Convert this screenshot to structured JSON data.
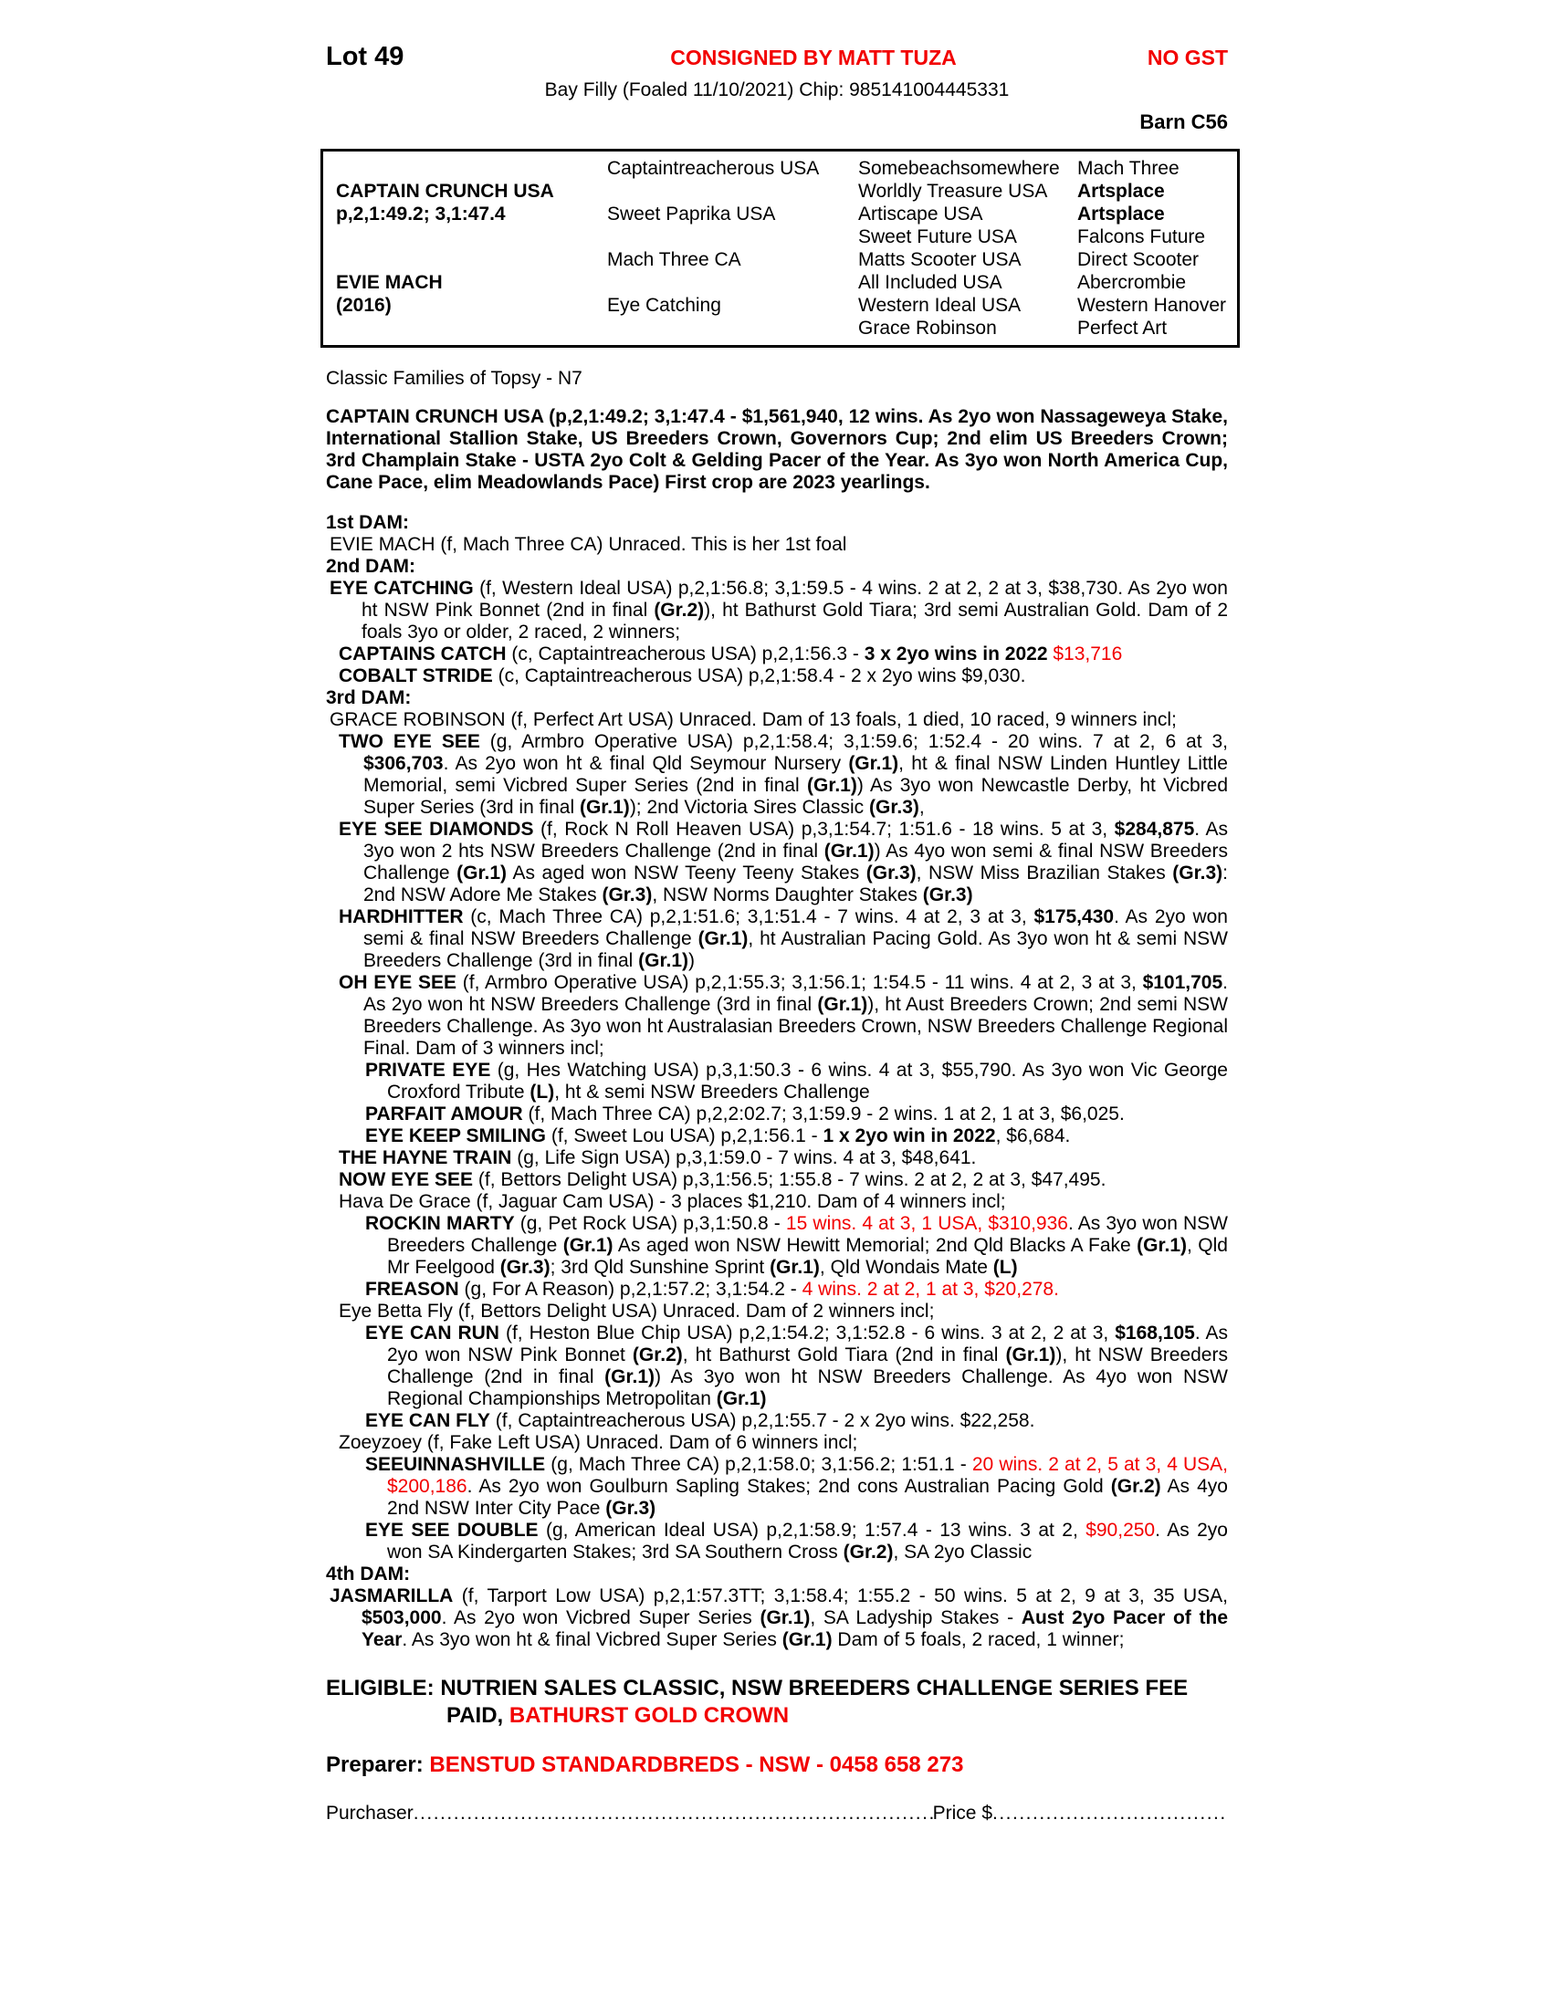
{
  "colors": {
    "accent_red": "#f20000",
    "text": "#000000",
    "page_background": "#ffffff"
  },
  "header": {
    "lot": "Lot 49",
    "consigned": "CONSIGNED BY MATT TUZA",
    "gst": "NO GST",
    "description": "Bay Filly (Foaled 11/10/2021) Chip: 985141004445331",
    "barn": "Barn C56"
  },
  "pedigree": {
    "col1": [
      "",
      {
        "t": "CAPTAIN CRUNCH USA",
        "b": true
      },
      {
        "t": "p,2,1:49.2; 3,1:47.4",
        "b": true
      },
      "",
      "",
      {
        "t": "EVIE MACH",
        "b": true
      },
      {
        "t": "(2016)",
        "b": true
      },
      ""
    ],
    "col2": [
      "Captaintreacherous USA",
      "",
      "Sweet Paprika USA",
      "",
      "Mach Three CA",
      "",
      "Eye Catching",
      ""
    ],
    "col3": [
      "Somebeachsomewhere",
      "Worldly Treasure USA",
      "Artiscape USA",
      "Sweet Future USA",
      "Matts Scooter USA",
      "All Included USA",
      "Western Ideal USA",
      "Grace Robinson"
    ],
    "col4": [
      "Mach Three",
      {
        "t": "Artsplace",
        "b": true
      },
      {
        "t": "Artsplace",
        "b": true
      },
      "Falcons Future",
      "Direct Scooter",
      "Abercrombie",
      "Western Hanover",
      "Perfect Art"
    ]
  },
  "body": [
    {
      "c": "note",
      "s": [
        "Classic Families of Topsy - N7"
      ]
    },
    {
      "c": "sire-para",
      "s": [
        "CAPTAIN CRUNCH USA (p,2,1:49.2; 3,1:47.4 - $1,561,940, 12 wins. As 2yo won Nassageweya Stake, International Stallion Stake, US Breeders Crown, Governors Cup; 2nd elim US Breeders Crown; 3rd Champlain Stake - USTA 2yo Colt & Gelding Pacer of the Year. As 3yo won North America Cup, Cane Pace, elim Meadowlands Pace) First crop are 2023 yearlings."
      ]
    },
    {
      "c": "dam-h",
      "s": [
        "1st DAM:"
      ]
    },
    {
      "c": "l1",
      "s": [
        "EVIE MACH (f, Mach Three CA) Unraced. This is her 1st foal"
      ]
    },
    {
      "c": "dam-h",
      "s": [
        "2nd DAM:"
      ]
    },
    {
      "c": "l1",
      "s": [
        {
          "t": "EYE CATCHING",
          "b": true
        },
        " (f, Western Ideal USA) p,2,1:56.8; 3,1:59.5 - 4 wins. 2 at 2, 2 at 3, $38,730. As 2yo won ht NSW Pink Bonnet (2nd in final ",
        {
          "t": "(Gr.2)",
          "b": true
        },
        "), ht Bathurst Gold Tiara; 3rd semi Australian Gold. Dam of 2 foals 3yo or older, 2 raced, 2 winners;"
      ]
    },
    {
      "c": "l2",
      "s": [
        {
          "t": "CAPTAINS CATCH",
          "b": true
        },
        " (c, Captaintreacherous USA) p,2,1:56.3 - ",
        {
          "t": "3 x 2yo wins in 2022",
          "b": true
        },
        " ",
        {
          "t": "$13,716",
          "r": true
        }
      ]
    },
    {
      "c": "l2",
      "s": [
        {
          "t": "COBALT STRIDE",
          "b": true
        },
        " (c, Captaintreacherous USA) p,2,1:58.4 - 2 x 2yo wins $9,030."
      ]
    },
    {
      "c": "dam-h",
      "s": [
        "3rd DAM:"
      ]
    },
    {
      "c": "l1",
      "s": [
        "GRACE ROBINSON (f, Perfect Art USA) Unraced. Dam of 13 foals, 1 died, 10 raced, 9 winners incl;"
      ]
    },
    {
      "c": "l2",
      "s": [
        {
          "t": "TWO EYE SEE",
          "b": true
        },
        " (g, Armbro Operative USA) p,2,1:58.4; 3,1:59.6; 1:52.4 - 20 wins. 7 at 2, 6 at 3, ",
        {
          "t": "$306,703",
          "b": true
        },
        ". As 2yo won ht & final Qld Seymour Nursery ",
        {
          "t": "(Gr.1)",
          "b": true
        },
        ", ht & final NSW Linden Huntley Little Memorial, semi Vicbred Super Series (2nd in final ",
        {
          "t": "(Gr.1)",
          "b": true
        },
        ") As 3yo won Newcastle Derby, ht Vicbred Super Series (3rd in final ",
        {
          "t": "(Gr.1)",
          "b": true
        },
        "); 2nd Victoria Sires Classic ",
        {
          "t": "(Gr.3)",
          "b": true
        },
        ","
      ]
    },
    {
      "c": "l2",
      "s": [
        {
          "t": "EYE SEE DIAMONDS",
          "b": true
        },
        " (f, Rock N Roll Heaven USA) p,3,1:54.7; 1:51.6 - 18 wins. 5 at 3, ",
        {
          "t": "$284,875",
          "b": true
        },
        ". As 3yo won 2 hts NSW Breeders Challenge (2nd in final ",
        {
          "t": "(Gr.1)",
          "b": true
        },
        ") As 4yo won semi & final NSW Breeders Challenge ",
        {
          "t": "(Gr.1)",
          "b": true
        },
        " As aged won NSW Teeny Teeny Stakes ",
        {
          "t": "(Gr.3)",
          "b": true
        },
        ", NSW Miss Brazilian Stakes ",
        {
          "t": "(Gr.3)",
          "b": true
        },
        ": 2nd NSW Adore Me Stakes ",
        {
          "t": "(Gr.3)",
          "b": true
        },
        ", NSW Norms Daughter Stakes ",
        {
          "t": "(Gr.3)",
          "b": true
        }
      ]
    },
    {
      "c": "l2",
      "s": [
        {
          "t": "HARDHITTER",
          "b": true
        },
        " (c, Mach Three CA) p,2,1:51.6; 3,1:51.4 - 7 wins. 4 at 2, 3 at 3, ",
        {
          "t": "$175,430",
          "b": true
        },
        ". As 2yo won semi & final NSW Breeders Challenge ",
        {
          "t": "(Gr.1)",
          "b": true
        },
        ", ht Australian Pacing Gold. As 3yo won ht & semi NSW Breeders Challenge (3rd in final ",
        {
          "t": "(Gr.1)",
          "b": true
        },
        ")"
      ]
    },
    {
      "c": "l2",
      "s": [
        {
          "t": "OH EYE SEE",
          "b": true
        },
        " (f, Armbro Operative USA) p,2,1:55.3; 3,1:56.1; 1:54.5 - 11 wins. 4 at 2, 3 at 3, ",
        {
          "t": "$101,705",
          "b": true
        },
        ". As 2yo won ht NSW Breeders Challenge (3rd in final ",
        {
          "t": "(Gr.1)",
          "b": true
        },
        "), ht Aust Breeders Crown; 2nd semi NSW Breeders Challenge. As 3yo won ht Australasian Breeders Crown, NSW Breeders Challenge Regional Final. Dam of 3 winners incl;"
      ]
    },
    {
      "c": "l3",
      "s": [
        {
          "t": "PRIVATE EYE",
          "b": true
        },
        " (g, Hes Watching USA) p,3,1:50.3 - 6 wins. 4 at 3, $55,790. As 3yo won Vic George Croxford Tribute ",
        {
          "t": "(L)",
          "b": true
        },
        ", ht & semi NSW Breeders Challenge"
      ]
    },
    {
      "c": "l3",
      "s": [
        {
          "t": "PARFAIT AMOUR",
          "b": true
        },
        " (f, Mach Three CA) p,2,2:02.7; 3,1:59.9 - 2 wins. 1 at 2, 1 at 3, $6,025."
      ]
    },
    {
      "c": "l3",
      "s": [
        {
          "t": "EYE KEEP SMILING",
          "b": true
        },
        " (f, Sweet Lou USA) p,2,1:56.1 - ",
        {
          "t": "1 x 2yo win in 2022",
          "b": true
        },
        ", $6,684."
      ]
    },
    {
      "c": "l2",
      "s": [
        {
          "t": "THE HAYNE TRAIN",
          "b": true
        },
        " (g, Life Sign USA) p,3,1:59.0 - 7 wins. 4 at 3, $48,641."
      ]
    },
    {
      "c": "l2",
      "s": [
        {
          "t": "NOW EYE SEE",
          "b": true
        },
        " (f, Bettors Delight USA) p,3,1:56.5; 1:55.8 - 7 wins. 2 at 2, 2 at 3, $47,495."
      ]
    },
    {
      "c": "l2",
      "s": [
        "Hava De Grace (f, Jaguar Cam USA) - 3 places $1,210. Dam of 4 winners incl;"
      ]
    },
    {
      "c": "l3",
      "s": [
        {
          "t": "ROCKIN MARTY",
          "b": true
        },
        " (g, Pet Rock USA) p,3,1:50.8 - ",
        {
          "t": "15 wins. 4 at 3, 1 USA, $310,936",
          "r": true
        },
        ". As 3yo won NSW Breeders Challenge ",
        {
          "t": "(Gr.1)",
          "b": true
        },
        " As aged won NSW Hewitt Memorial; 2nd Qld Blacks A Fake ",
        {
          "t": "(Gr.1)",
          "b": true
        },
        ", Qld Mr Feelgood ",
        {
          "t": "(Gr.3)",
          "b": true
        },
        "; 3rd Qld Sunshine Sprint ",
        {
          "t": "(Gr.1)",
          "b": true
        },
        ", Qld Wondais Mate ",
        {
          "t": "(L)",
          "b": true
        }
      ]
    },
    {
      "c": "l3",
      "s": [
        {
          "t": "FREASON",
          "b": true
        },
        " (g, For A Reason) p,2,1:57.2; 3,1:54.2 - ",
        {
          "t": "4 wins. 2 at 2, 1 at 3, $20,278.",
          "r": true
        }
      ]
    },
    {
      "c": "l2",
      "s": [
        "Eye Betta Fly (f, Bettors Delight USA) Unraced. Dam of 2 winners incl;"
      ]
    },
    {
      "c": "l3",
      "s": [
        {
          "t": "EYE CAN RUN",
          "b": true
        },
        " (f, Heston Blue Chip USA) p,2,1:54.2; 3,1:52.8 - 6 wins. 3 at 2, 2 at 3, ",
        {
          "t": "$168,105",
          "b": true
        },
        ". As 2yo won NSW Pink Bonnet ",
        {
          "t": "(Gr.2)",
          "b": true
        },
        ", ht Bathurst Gold Tiara (2nd in final ",
        {
          "t": "(Gr.1)",
          "b": true
        },
        "), ht NSW Breeders Challenge (2nd in final ",
        {
          "t": "(Gr.1)",
          "b": true
        },
        ") As 3yo won ht NSW Breeders Challenge. As 4yo won NSW Regional Championships Metropolitan ",
        {
          "t": "(Gr.1)",
          "b": true
        }
      ]
    },
    {
      "c": "l3",
      "s": [
        {
          "t": "EYE CAN FLY",
          "b": true
        },
        " (f, Captaintreacherous USA) p,2,1:55.7 - 2 x 2yo wins. $22,258."
      ]
    },
    {
      "c": "l2",
      "s": [
        "Zoeyzoey (f, Fake Left USA) Unraced. Dam of 6 winners incl;"
      ]
    },
    {
      "c": "l3",
      "s": [
        {
          "t": "SEEUINNASHVILLE",
          "b": true
        },
        " (g, Mach Three CA) p,2,1:58.0; 3,1:56.2; 1:51.1 - ",
        {
          "t": "20 wins. 2 at 2, 5 at 3, 4 USA, $200,186",
          "r": true
        },
        ". As 2yo won Goulburn Sapling Stakes; 2nd cons Australian Pacing Gold ",
        {
          "t": "(Gr.2)",
          "b": true
        },
        " As 4yo 2nd NSW Inter City Pace ",
        {
          "t": "(Gr.3)",
          "b": true
        }
      ]
    },
    {
      "c": "l3",
      "s": [
        {
          "t": "EYE SEE DOUBLE",
          "b": true
        },
        " (g, American Ideal USA) p,2,1:58.9; 1:57.4 - 13 wins. 3 at 2, ",
        {
          "t": "$90,250",
          "r": true
        },
        ". As 2yo won SA Kindergarten Stakes; 3rd SA Southern Cross ",
        {
          "t": "(Gr.2)",
          "b": true
        },
        ", SA 2yo Classic"
      ]
    },
    {
      "c": "dam-h",
      "s": [
        "4th DAM:"
      ]
    },
    {
      "c": "l1",
      "s": [
        {
          "t": "JASMARILLA",
          "b": true
        },
        " (f, Tarport Low USA) p,2,1:57.3TT; 3,1:58.4; 1:55.2 - 50 wins. 5 at 2, 9 at 3, 35 USA, ",
        {
          "t": "$503,000",
          "b": true
        },
        ". As 2yo won Vicbred Super Series ",
        {
          "t": "(Gr.1)",
          "b": true
        },
        ", SA Ladyship Stakes - ",
        {
          "t": "Aust 2yo Pacer of the Year",
          "b": true
        },
        ". As 3yo won ht & final Vicbred Super Series ",
        {
          "t": "(Gr.1)",
          "b": true
        },
        " Dam of 5 foals, 2 raced, 1 winner;"
      ]
    }
  ],
  "eligible": [
    {
      "t": "ELIGIBLE: NUTRIEN SALES CLASSIC, NSW BREEDERS CHALLENGE SERIES FEE PAID, "
    },
    {
      "t": "BATHURST GOLD CROWN",
      "r": true
    }
  ],
  "preparer": [
    {
      "t": "Preparer: "
    },
    {
      "t": "BENSTUD STANDARDBREDS - NSW - 0458 658 273",
      "r": true
    }
  ],
  "purchaser": {
    "label": "Purchaser",
    "dots1": "..........................................................................................................................................",
    "price": "Price $",
    "dots2": "............................................................"
  }
}
